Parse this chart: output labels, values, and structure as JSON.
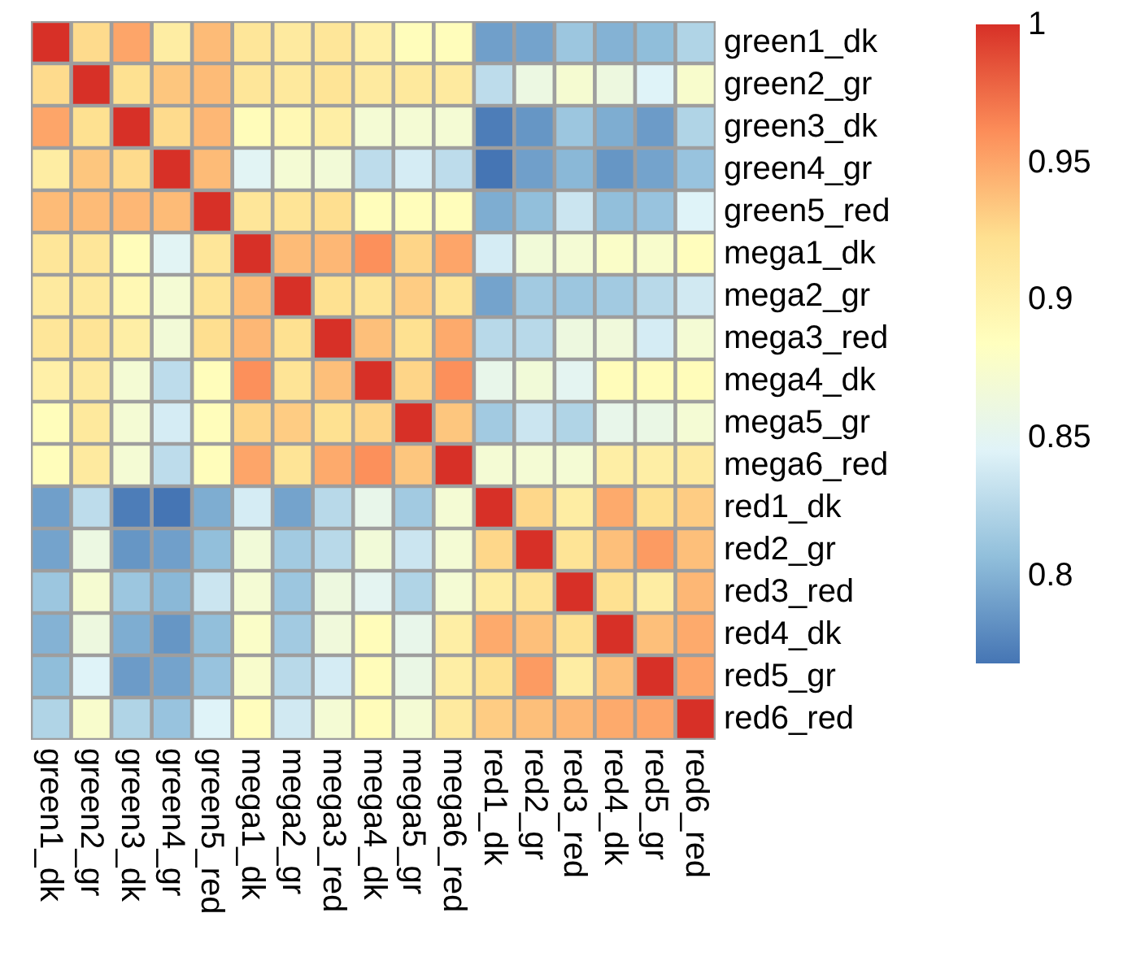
{
  "chart_data": {
    "type": "heatmap",
    "categories": [
      "green1_dk",
      "green2_gr",
      "green3_dk",
      "green4_gr",
      "green5_red",
      "mega1_dk",
      "mega2_gr",
      "mega3_red",
      "mega4_dk",
      "mega5_gr",
      "mega6_red",
      "red1_dk",
      "red2_gr",
      "red3_red",
      "red4_dk",
      "red5_gr",
      "red6_red"
    ],
    "y_categories": [
      "green1_dk",
      "green2_gr",
      "green3_dk",
      "green4_gr",
      "green5_red",
      "mega1_dk",
      "mega2_gr",
      "mega3_red",
      "mega4_dk",
      "mega5_gr",
      "mega6_red",
      "red1_dk",
      "red2_gr",
      "red3_red",
      "red4_dk",
      "red5_gr",
      "red6_red"
    ],
    "cells": [
      [
        1,
        0.925,
        0.95,
        0.907,
        0.94,
        0.915,
        0.91,
        0.915,
        0.903,
        0.887,
        0.887,
        0.79,
        0.792,
        0.812,
        0.8,
        0.806,
        0.822
      ],
      [
        0.925,
        1,
        0.922,
        0.935,
        0.94,
        0.915,
        0.912,
        0.918,
        0.91,
        0.912,
        0.91,
        0.828,
        0.86,
        0.872,
        0.862,
        0.845,
        0.875
      ],
      [
        0.95,
        0.922,
        1,
        0.925,
        0.942,
        0.888,
        0.893,
        0.905,
        0.87,
        0.87,
        0.87,
        0.772,
        0.785,
        0.812,
        0.797,
        0.788,
        0.822
      ],
      [
        0.907,
        0.935,
        0.925,
        1,
        0.94,
        0.848,
        0.87,
        0.868,
        0.828,
        0.84,
        0.828,
        0.768,
        0.79,
        0.803,
        0.785,
        0.792,
        0.81
      ],
      [
        0.94,
        0.94,
        0.942,
        0.94,
        1,
        0.915,
        0.918,
        0.923,
        0.887,
        0.887,
        0.887,
        0.797,
        0.807,
        0.835,
        0.807,
        0.81,
        0.845
      ],
      [
        0.915,
        0.915,
        0.888,
        0.848,
        0.915,
        1,
        0.94,
        0.942,
        0.96,
        0.928,
        0.95,
        0.84,
        0.867,
        0.87,
        0.878,
        0.875,
        0.886
      ],
      [
        0.91,
        0.912,
        0.893,
        0.87,
        0.918,
        0.94,
        1,
        0.922,
        0.918,
        0.932,
        0.918,
        0.792,
        0.815,
        0.812,
        0.815,
        0.826,
        0.838
      ],
      [
        0.915,
        0.918,
        0.905,
        0.868,
        0.923,
        0.942,
        0.922,
        1,
        0.938,
        0.922,
        0.948,
        0.826,
        0.826,
        0.862,
        0.865,
        0.84,
        0.87
      ],
      [
        0.903,
        0.91,
        0.87,
        0.828,
        0.887,
        0.96,
        0.918,
        0.938,
        1,
        0.928,
        0.96,
        0.855,
        0.867,
        0.85,
        0.888,
        0.888,
        0.888
      ],
      [
        0.887,
        0.912,
        0.87,
        0.84,
        0.887,
        0.928,
        0.932,
        0.922,
        0.928,
        1,
        0.935,
        0.815,
        0.835,
        0.822,
        0.855,
        0.858,
        0.87
      ],
      [
        0.887,
        0.91,
        0.87,
        0.828,
        0.887,
        0.95,
        0.918,
        0.948,
        0.96,
        0.935,
        1,
        0.87,
        0.87,
        0.87,
        0.905,
        0.905,
        0.91
      ],
      [
        0.79,
        0.828,
        0.772,
        0.768,
        0.797,
        0.84,
        0.792,
        0.826,
        0.855,
        0.815,
        0.87,
        1,
        0.927,
        0.907,
        0.948,
        0.922,
        0.932
      ],
      [
        0.792,
        0.86,
        0.785,
        0.79,
        0.807,
        0.867,
        0.815,
        0.826,
        0.867,
        0.835,
        0.87,
        0.927,
        1,
        0.918,
        0.938,
        0.955,
        0.938
      ],
      [
        0.812,
        0.872,
        0.812,
        0.803,
        0.835,
        0.87,
        0.812,
        0.862,
        0.85,
        0.822,
        0.87,
        0.907,
        0.918,
        1,
        0.922,
        0.907,
        0.942
      ],
      [
        0.8,
        0.862,
        0.797,
        0.785,
        0.807,
        0.878,
        0.815,
        0.865,
        0.888,
        0.855,
        0.905,
        0.948,
        0.938,
        0.922,
        1,
        0.938,
        0.948
      ],
      [
        0.806,
        0.845,
        0.788,
        0.792,
        0.81,
        0.875,
        0.826,
        0.84,
        0.888,
        0.858,
        0.905,
        0.922,
        0.955,
        0.907,
        0.938,
        1,
        0.95
      ],
      [
        0.822,
        0.875,
        0.822,
        0.81,
        0.845,
        0.886,
        0.838,
        0.87,
        0.888,
        0.87,
        0.91,
        0.932,
        0.938,
        0.942,
        0.948,
        0.95,
        1
      ]
    ],
    "clim": [
      0.768,
      1
    ],
    "cticks": [
      0.8,
      0.85,
      0.9,
      0.95,
      1
    ]
  }
}
